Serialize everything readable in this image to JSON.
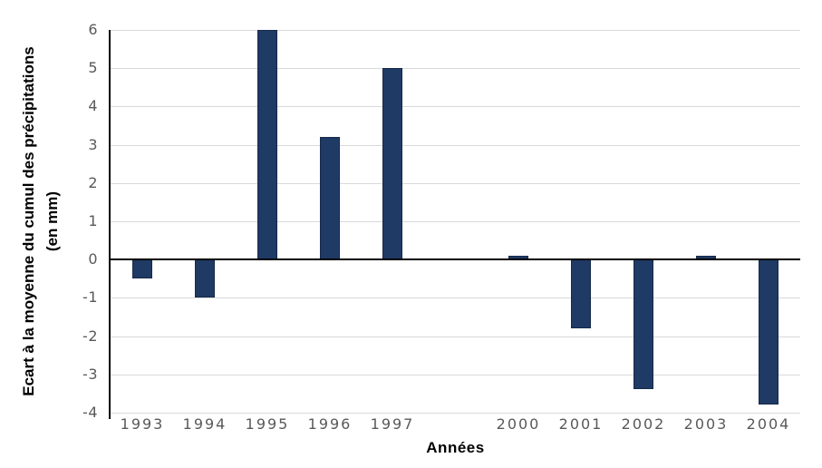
{
  "chart_data": {
    "type": "bar",
    "title": "",
    "xlabel": "Années",
    "ylabel": "Ecart à la moyenne du cumul des précipitations",
    "ylabel_line2": "(en mm)",
    "categories": [
      "1993",
      "1994",
      "1995",
      "1996",
      "1997",
      "",
      "2000",
      "2001",
      "2002",
      "2003",
      "2004"
    ],
    "values": [
      -0.5,
      -1.0,
      6.0,
      3.2,
      5.0,
      null,
      0.1,
      -1.8,
      -3.4,
      0.1,
      -3.8
    ],
    "ylim": [
      -4,
      6
    ],
    "yticks": [
      6,
      5,
      4,
      3,
      2,
      1,
      0,
      -1,
      -2,
      -3,
      -4
    ],
    "grid": true,
    "legend": "none",
    "gap_note": "no bars or labels for 1998 and 1999 (empty slot between 1997 and 2000)",
    "colors": {
      "bar_fill": "#1f3a64",
      "bar_border": "#16294a",
      "gridline": "#d9d9d9",
      "axis_line": "#000000",
      "tick_label": "#595959",
      "axis_title": "#000000",
      "background": "#ffffff"
    }
  }
}
